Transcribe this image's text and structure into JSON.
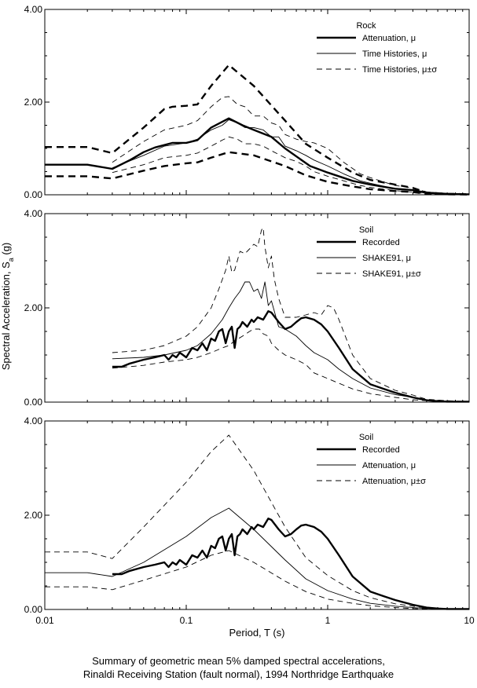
{
  "figure": {
    "caption_line1": "Summary of geometric mean 5% damped spectral accelerations,",
    "caption_line2": "Rinaldi Receiving Station (fault normal), 1994 Northridge Earthquake",
    "ylabel": "Spectral Acceleration, S",
    "ylabel_sub": "a",
    "ylabel_unit": " (g)",
    "xlabel": "Period, T (s)"
  },
  "chart_data": [
    {
      "type": "line",
      "xscale": "log",
      "xlim": [
        0.01,
        10
      ],
      "ylim": [
        0,
        4
      ],
      "yticks": [
        "0.00",
        "2.00",
        "4.00"
      ],
      "xticks": [],
      "legend_title": "Rock",
      "legend_position": "top-right",
      "series": [
        {
          "name": "Attenuation, μ",
          "style": "thick",
          "x": [
            0.01,
            0.02,
            0.03,
            0.04,
            0.05,
            0.06,
            0.08,
            0.1,
            0.12,
            0.15,
            0.2,
            0.25,
            0.3,
            0.4,
            0.5,
            0.75,
            1,
            1.5,
            2,
            3,
            4,
            5,
            7,
            10
          ],
          "y": [
            0.65,
            0.65,
            0.56,
            0.75,
            0.92,
            1.02,
            1.12,
            1.12,
            1.18,
            1.45,
            1.65,
            1.5,
            1.4,
            1.25,
            1.0,
            0.62,
            0.48,
            0.3,
            0.22,
            0.13,
            0.1,
            0.04,
            0.02,
            0.01
          ]
        },
        {
          "name": "Time Histories, μ",
          "style": "thin",
          "x": [
            0.03,
            0.05,
            0.07,
            0.1,
            0.12,
            0.15,
            0.18,
            0.2,
            0.23,
            0.26,
            0.3,
            0.35,
            0.4,
            0.45,
            0.5,
            0.6,
            0.7,
            0.8,
            1,
            1.3,
            1.7,
            2,
            3,
            4,
            5,
            7,
            10
          ],
          "y": [
            0.58,
            0.85,
            1.05,
            1.12,
            1.2,
            1.4,
            1.5,
            1.62,
            1.55,
            1.45,
            1.45,
            1.4,
            1.25,
            1.25,
            1.05,
            0.95,
            0.85,
            0.75,
            0.62,
            0.45,
            0.3,
            0.25,
            0.13,
            0.1,
            0.04,
            0.02,
            0.01
          ]
        },
        {
          "name": "Time Histories, μ±σ",
          "style": "thin-dash",
          "x": [
            0.03,
            0.05,
            0.07,
            0.1,
            0.12,
            0.15,
            0.18,
            0.2,
            0.23,
            0.26,
            0.3,
            0.35,
            0.4,
            0.45,
            0.5,
            0.6,
            0.7,
            0.8,
            1,
            1.3,
            1.7,
            2,
            3,
            4,
            5,
            7,
            10
          ],
          "y": [
            0.7,
            1.15,
            1.4,
            1.5,
            1.6,
            1.9,
            2.1,
            2.12,
            1.95,
            1.9,
            1.7,
            1.7,
            1.55,
            1.5,
            1.3,
            1.2,
            1.15,
            1.12,
            1.0,
            0.7,
            0.45,
            0.37,
            0.2,
            0.15,
            0.06,
            0.03,
            0.01
          ]
        },
        {
          "name": "",
          "style": "thin-dash",
          "x": [
            0.03,
            0.05,
            0.07,
            0.1,
            0.12,
            0.15,
            0.18,
            0.2,
            0.23,
            0.26,
            0.3,
            0.35,
            0.4,
            0.5,
            0.6,
            0.7,
            0.8,
            1,
            1.3,
            1.7,
            2,
            3,
            4,
            5,
            7,
            10
          ],
          "y": [
            0.48,
            0.65,
            0.8,
            0.85,
            0.9,
            1.05,
            1.18,
            1.25,
            1.2,
            1.1,
            1.1,
            1.05,
            0.95,
            0.8,
            0.72,
            0.62,
            0.5,
            0.4,
            0.3,
            0.2,
            0.16,
            0.09,
            0.06,
            0.02,
            0.01,
            0.005
          ]
        },
        {
          "name": "",
          "style": "thick-dash",
          "x": [
            0.01,
            0.02,
            0.03,
            0.05,
            0.07,
            0.08,
            0.1,
            0.12,
            0.15,
            0.2,
            0.3,
            0.5,
            0.7,
            1,
            1.5,
            2,
            3,
            4,
            5,
            7,
            10
          ],
          "y": [
            1.03,
            1.03,
            0.9,
            1.45,
            1.85,
            1.9,
            1.92,
            1.95,
            2.35,
            2.8,
            2.35,
            1.6,
            1.1,
            0.8,
            0.48,
            0.32,
            0.22,
            0.15,
            0.05,
            0.02,
            0.01
          ]
        },
        {
          "name": "",
          "style": "thick-dash",
          "x": [
            0.01,
            0.02,
            0.03,
            0.05,
            0.07,
            0.1,
            0.12,
            0.15,
            0.2,
            0.3,
            0.5,
            0.7,
            1,
            1.5,
            2,
            3,
            4,
            5,
            7,
            10
          ],
          "y": [
            0.4,
            0.4,
            0.35,
            0.52,
            0.62,
            0.68,
            0.7,
            0.8,
            0.92,
            0.85,
            0.62,
            0.42,
            0.28,
            0.18,
            0.12,
            0.08,
            0.06,
            0.02,
            0.01,
            0.005
          ]
        }
      ]
    },
    {
      "type": "line",
      "xscale": "log",
      "xlim": [
        0.01,
        10
      ],
      "ylim": [
        0,
        4
      ],
      "yticks": [
        "0.00",
        "2.00",
        "4.00"
      ],
      "xticks": [],
      "legend_title": "Soil",
      "legend_position": "top-right",
      "series": [
        {
          "name": "Recorded",
          "style": "thick",
          "x": [
            0.03,
            0.035,
            0.04,
            0.05,
            0.06,
            0.07,
            0.075,
            0.08,
            0.085,
            0.09,
            0.1,
            0.11,
            0.12,
            0.13,
            0.14,
            0.15,
            0.16,
            0.17,
            0.18,
            0.19,
            0.2,
            0.21,
            0.22,
            0.23,
            0.24,
            0.25,
            0.27,
            0.29,
            0.3,
            0.32,
            0.35,
            0.38,
            0.4,
            0.45,
            0.5,
            0.55,
            0.6,
            0.65,
            0.7,
            0.8,
            0.9,
            1,
            1.2,
            1.5,
            2,
            2.5,
            3,
            4,
            5,
            6,
            7,
            10
          ],
          "y": [
            0.75,
            0.75,
            0.82,
            0.9,
            0.95,
            1.0,
            0.9,
            1.0,
            0.95,
            1.05,
            0.95,
            1.15,
            1.1,
            1.25,
            1.1,
            1.35,
            1.3,
            1.5,
            1.55,
            1.25,
            1.5,
            1.6,
            1.15,
            1.55,
            1.6,
            1.7,
            1.6,
            1.75,
            1.7,
            1.8,
            1.75,
            1.93,
            1.9,
            1.7,
            1.55,
            1.6,
            1.7,
            1.78,
            1.8,
            1.75,
            1.65,
            1.5,
            1.15,
            0.7,
            0.38,
            0.28,
            0.2,
            0.1,
            0.04,
            0.02,
            0.01,
            0.01
          ]
        },
        {
          "name": "SHAKE91, μ",
          "style": "thin",
          "x": [
            0.03,
            0.05,
            0.07,
            0.1,
            0.12,
            0.15,
            0.18,
            0.2,
            0.22,
            0.24,
            0.26,
            0.28,
            0.3,
            0.32,
            0.34,
            0.36,
            0.38,
            0.4,
            0.45,
            0.5,
            0.6,
            0.7,
            0.8,
            1,
            1.2,
            1.5,
            2,
            3,
            4,
            5,
            7,
            10
          ],
          "y": [
            0.92,
            0.95,
            1.0,
            1.1,
            1.2,
            1.45,
            1.75,
            2.0,
            2.2,
            2.35,
            2.55,
            2.55,
            2.35,
            2.4,
            2.2,
            2.55,
            2.05,
            2.15,
            1.6,
            1.55,
            1.4,
            1.2,
            1.05,
            0.9,
            0.7,
            0.5,
            0.3,
            0.16,
            0.1,
            0.04,
            0.02,
            0.01
          ]
        },
        {
          "name": "SHAKE91, μ±σ",
          "style": "thin-dash",
          "x": [
            0.03,
            0.05,
            0.07,
            0.1,
            0.12,
            0.15,
            0.17,
            0.19,
            0.2,
            0.21,
            0.22,
            0.24,
            0.26,
            0.28,
            0.3,
            0.32,
            0.34,
            0.35,
            0.36,
            0.38,
            0.4,
            0.42,
            0.45,
            0.5,
            0.6,
            0.7,
            0.8,
            0.9,
            1,
            1.1,
            1.2,
            1.5,
            2,
            3,
            4,
            5,
            7,
            10
          ],
          "y": [
            1.05,
            1.1,
            1.2,
            1.4,
            1.6,
            2.0,
            2.4,
            2.8,
            3.1,
            2.75,
            2.8,
            3.2,
            3.15,
            3.25,
            3.35,
            3.3,
            3.65,
            3.7,
            3.3,
            2.85,
            3.1,
            2.6,
            2.2,
            1.8,
            1.8,
            1.85,
            1.9,
            1.85,
            2.05,
            2.0,
            1.75,
            1.0,
            0.5,
            0.25,
            0.15,
            0.06,
            0.03,
            0.01
          ]
        },
        {
          "name": "",
          "style": "thin-dash",
          "x": [
            0.03,
            0.05,
            0.07,
            0.1,
            0.12,
            0.15,
            0.18,
            0.2,
            0.22,
            0.25,
            0.28,
            0.3,
            0.33,
            0.35,
            0.38,
            0.4,
            0.45,
            0.5,
            0.6,
            0.7,
            0.8,
            1,
            1.2,
            1.5,
            2,
            3,
            4,
            5,
            7,
            10
          ],
          "y": [
            0.72,
            0.78,
            0.85,
            0.9,
            0.95,
            1.05,
            1.15,
            1.2,
            1.3,
            1.4,
            1.5,
            1.55,
            1.55,
            1.45,
            1.4,
            1.25,
            1.1,
            1.0,
            0.9,
            0.8,
            0.62,
            0.5,
            0.4,
            0.28,
            0.18,
            0.1,
            0.05,
            0.03,
            0.01,
            0.005
          ]
        }
      ]
    },
    {
      "type": "line",
      "xscale": "log",
      "xlim": [
        0.01,
        10
      ],
      "ylim": [
        0,
        4
      ],
      "yticks": [
        "0.00",
        "2.00",
        "4.00"
      ],
      "xticks": [
        "0.01",
        "0.1",
        "1",
        "10"
      ],
      "legend_title": "Soil",
      "legend_position": "top-right",
      "series": [
        {
          "name": "Recorded",
          "style": "thick",
          "x": [
            0.03,
            0.035,
            0.04,
            0.05,
            0.06,
            0.07,
            0.075,
            0.08,
            0.085,
            0.09,
            0.1,
            0.11,
            0.12,
            0.13,
            0.14,
            0.15,
            0.16,
            0.17,
            0.18,
            0.19,
            0.2,
            0.21,
            0.22,
            0.23,
            0.24,
            0.25,
            0.27,
            0.29,
            0.3,
            0.32,
            0.35,
            0.38,
            0.4,
            0.45,
            0.5,
            0.55,
            0.6,
            0.65,
            0.7,
            0.8,
            0.9,
            1,
            1.2,
            1.5,
            2,
            2.5,
            3,
            4,
            5,
            6,
            7,
            10
          ],
          "y": [
            0.75,
            0.75,
            0.82,
            0.9,
            0.95,
            1.0,
            0.9,
            1.0,
            0.95,
            1.05,
            0.95,
            1.15,
            1.1,
            1.25,
            1.1,
            1.35,
            1.3,
            1.5,
            1.55,
            1.25,
            1.5,
            1.6,
            1.15,
            1.55,
            1.6,
            1.7,
            1.6,
            1.75,
            1.7,
            1.8,
            1.75,
            1.93,
            1.9,
            1.7,
            1.55,
            1.6,
            1.7,
            1.78,
            1.8,
            1.75,
            1.65,
            1.5,
            1.15,
            0.7,
            0.38,
            0.28,
            0.2,
            0.1,
            0.04,
            0.02,
            0.01,
            0.01
          ]
        },
        {
          "name": "Attenuation, μ",
          "style": "thin",
          "x": [
            0.01,
            0.02,
            0.03,
            0.05,
            0.1,
            0.15,
            0.2,
            0.3,
            0.5,
            0.7,
            1,
            1.5,
            2,
            3,
            4,
            5,
            7,
            10
          ],
          "y": [
            0.78,
            0.78,
            0.7,
            1.0,
            1.55,
            1.95,
            2.15,
            1.7,
            1.05,
            0.65,
            0.4,
            0.22,
            0.13,
            0.07,
            0.04,
            0.02,
            0.01,
            0.005
          ]
        },
        {
          "name": "Attenuation, μ±σ",
          "style": "thin-dash",
          "x": [
            0.01,
            0.02,
            0.03,
            0.05,
            0.1,
            0.15,
            0.2,
            0.3,
            0.5,
            0.7,
            1,
            1.5,
            2,
            3,
            4,
            5,
            7,
            10
          ],
          "y": [
            1.22,
            1.22,
            1.08,
            1.75,
            2.7,
            3.35,
            3.7,
            2.95,
            1.75,
            1.1,
            0.72,
            0.4,
            0.25,
            0.12,
            0.07,
            0.03,
            0.01,
            0.005
          ]
        },
        {
          "name": "",
          "style": "thin-dash",
          "x": [
            0.01,
            0.02,
            0.03,
            0.05,
            0.1,
            0.15,
            0.2,
            0.3,
            0.5,
            0.7,
            1,
            1.5,
            2,
            3,
            4,
            5,
            7,
            10
          ],
          "y": [
            0.48,
            0.48,
            0.42,
            0.62,
            0.9,
            1.15,
            1.25,
            1.0,
            0.6,
            0.38,
            0.22,
            0.13,
            0.08,
            0.04,
            0.02,
            0.01,
            0.005,
            0.002
          ]
        }
      ]
    }
  ]
}
